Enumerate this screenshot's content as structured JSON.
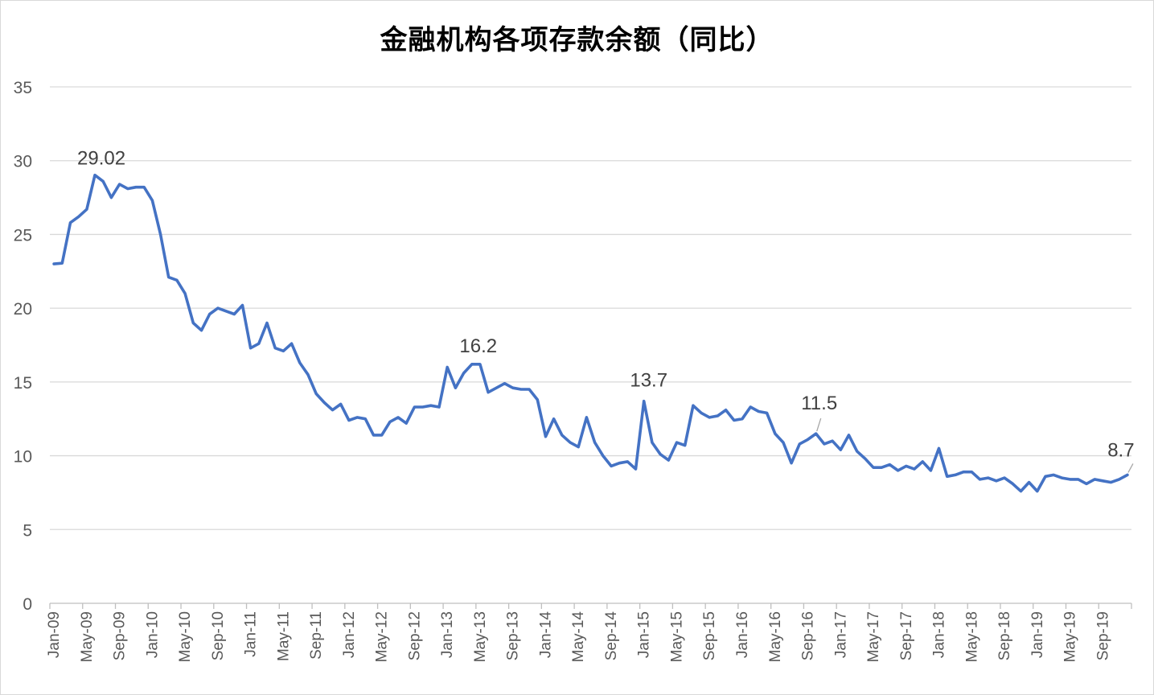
{
  "chart_data": {
    "type": "line",
    "title": "金融机构各项存款余额（同比）",
    "xlabel": "",
    "ylabel": "",
    "ylim": [
      0,
      35
    ],
    "y_ticks": [
      "0",
      "5",
      "10",
      "15",
      "20",
      "25",
      "30",
      "35"
    ],
    "x_tick_labels": [
      "Jan-09",
      "May-09",
      "Sep-09",
      "Jan-10",
      "May-10",
      "Sep-10",
      "Jan-11",
      "May-11",
      "Sep-11",
      "Jan-12",
      "May-12",
      "Sep-12",
      "Jan-13",
      "May-13",
      "Sep-13",
      "Jan-14",
      "May-14",
      "Sep-14",
      "Jan-15",
      "May-15",
      "Sep-15",
      "Jan-16",
      "May-16",
      "Sep-16",
      "Jan-17",
      "May-17",
      "Sep-17",
      "Jan-18",
      "May-18",
      "Sep-18",
      "Jan-19",
      "May-19",
      "Sep-19"
    ],
    "grid": true,
    "legend": "none",
    "series_color": "#4472C4",
    "x_start": "2009-01",
    "values": [
      23.0,
      23.05,
      25.8,
      26.2,
      26.7,
      29.02,
      28.6,
      27.5,
      28.4,
      28.1,
      28.2,
      28.2,
      27.3,
      25.0,
      22.1,
      21.9,
      21.0,
      19.0,
      18.5,
      19.6,
      20.0,
      19.8,
      19.6,
      20.2,
      17.3,
      17.6,
      19.0,
      17.3,
      17.1,
      17.6,
      16.3,
      15.5,
      14.2,
      13.6,
      13.1,
      13.5,
      12.4,
      12.6,
      12.5,
      11.4,
      11.4,
      12.3,
      12.6,
      12.2,
      13.3,
      13.3,
      13.4,
      13.3,
      16.0,
      14.6,
      15.6,
      16.2,
      16.2,
      14.3,
      14.6,
      14.9,
      14.6,
      14.5,
      14.5,
      13.8,
      11.3,
      12.5,
      11.4,
      10.9,
      10.6,
      12.6,
      10.9,
      10.0,
      9.3,
      9.5,
      9.6,
      9.1,
      13.7,
      10.9,
      10.1,
      9.7,
      10.9,
      10.7,
      13.4,
      12.9,
      12.6,
      12.7,
      13.1,
      12.4,
      12.5,
      13.3,
      13.0,
      12.9,
      11.5,
      10.9,
      9.5,
      10.8,
      11.1,
      11.5,
      10.8,
      11.0,
      10.4,
      11.4,
      10.3,
      9.8,
      9.2,
      9.2,
      9.4,
      9.0,
      9.3,
      9.1,
      9.6,
      9.0,
      10.5,
      8.6,
      8.7,
      8.9,
      8.9,
      8.4,
      8.5,
      8.3,
      8.5,
      8.1,
      7.6,
      8.2,
      7.6,
      8.6,
      8.7,
      8.5,
      8.4,
      8.4,
      8.1,
      8.4,
      8.3,
      8.2,
      8.4,
      8.7
    ],
    "annotations": [
      {
        "index": 5,
        "text": "29.02"
      },
      {
        "index": 51,
        "text": "16.2"
      },
      {
        "index": 72,
        "text": "13.7"
      },
      {
        "index": 93,
        "text": "11.5"
      },
      {
        "index": 131,
        "text": "8.7"
      }
    ]
  }
}
